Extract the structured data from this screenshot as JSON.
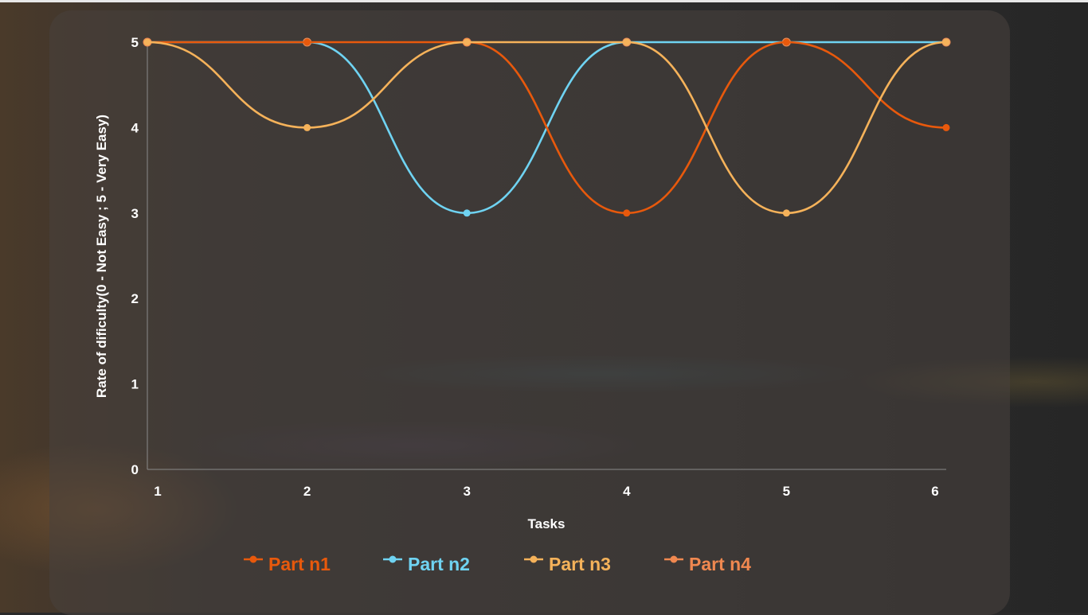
{
  "chart_data": {
    "type": "line",
    "x": [
      1,
      2,
      3,
      4,
      5,
      6
    ],
    "xlabel": "Tasks",
    "ylabel": "Rate of dificulty(0 - Not Easy ; 5 - Very Easy)",
    "ylim": [
      0,
      5
    ],
    "yticks": [
      0,
      1,
      2,
      3,
      4,
      5
    ],
    "curve": "smooth",
    "grid": false,
    "legend_position": "bottom",
    "series": [
      {
        "name": "Part n1",
        "color": "#e8590c",
        "values": [
          5,
          5,
          5,
          3,
          5,
          4
        ]
      },
      {
        "name": "Part n2",
        "color": "#6fd3f2",
        "values": [
          5,
          5,
          3,
          5,
          5,
          5
        ]
      },
      {
        "name": "Part n3",
        "color": "#f5b25a",
        "values": [
          5,
          4,
          5,
          5,
          3,
          5
        ]
      },
      {
        "name": "Part n4",
        "color": "#f08850",
        "values": [
          5,
          5,
          5,
          5,
          5,
          5
        ]
      }
    ]
  }
}
